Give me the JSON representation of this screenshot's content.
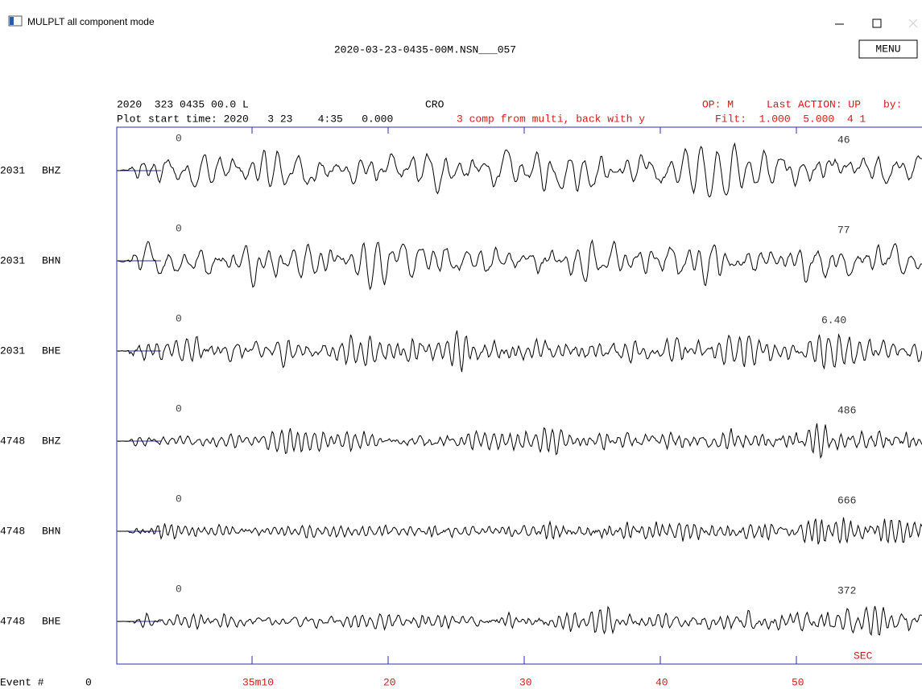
{
  "window": {
    "title": "MULPLT all component mode"
  },
  "file_name": "2020-03-23-0435-00M.NSN___057",
  "menu_button": "MENU",
  "header": {
    "date_line": "2020  323 0435 00.0 L",
    "station": "CRO",
    "operator": "OP: M",
    "last_action": "Last ACTION: UP",
    "by": "by:",
    "start_time": "Plot start time: 2020   3 23    4:35   0.000",
    "message": "3 comp from multi, back with y",
    "filter": "Filt:  1.000  5.000  4 1"
  },
  "traces": [
    {
      "station": "2031",
      "component": "BHZ",
      "start_label": "0",
      "max_amplitude": "46"
    },
    {
      "station": "2031",
      "component": "BHN",
      "start_label": "0",
      "max_amplitude": "77"
    },
    {
      "station": "2031",
      "component": "BHE",
      "start_label": "0",
      "max_amplitude": "6.40"
    },
    {
      "station": "4748",
      "component": "BHZ",
      "start_label": "0",
      "max_amplitude": "486"
    },
    {
      "station": "4748",
      "component": "BHN",
      "start_label": "0",
      "max_amplitude": "666"
    },
    {
      "station": "4748",
      "component": "BHE",
      "start_label": "0",
      "max_amplitude": "372"
    }
  ],
  "time_axis": {
    "unit": "SEC",
    "labels": [
      "35m10",
      "20",
      "30",
      "40",
      "50"
    ]
  },
  "footer": {
    "event_label": "Event #",
    "event_number": "0"
  }
}
